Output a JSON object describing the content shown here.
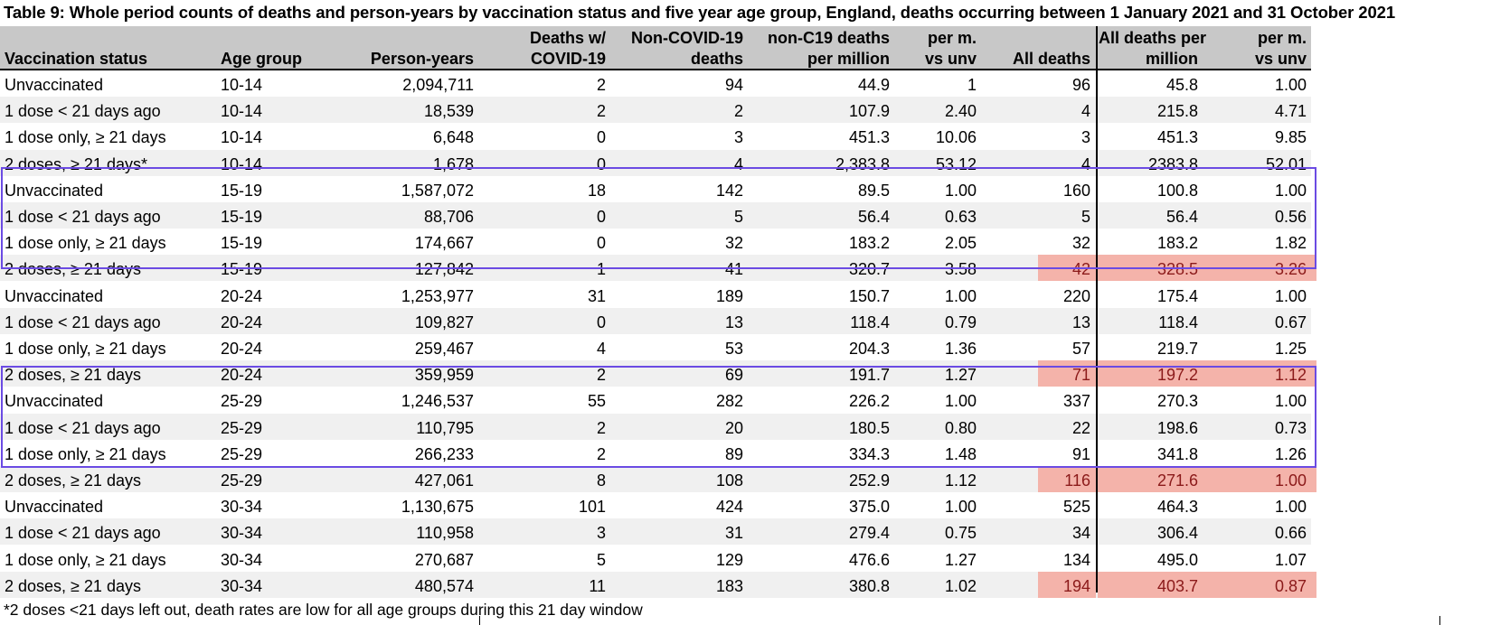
{
  "title": "Table 9: Whole period counts of deaths and person-years by vaccination status and five year age group, England, deaths occurring between 1 January 2021 and 31 October 2021",
  "headers": {
    "status": [
      "Vaccination status"
    ],
    "age": [
      "Age group"
    ],
    "py": [
      "Person-years"
    ],
    "dwc": [
      "Deaths w/",
      "COVID-19"
    ],
    "ncd": [
      "Non-COVID-19",
      "deaths"
    ],
    "ncpm": [
      "non-C19 deaths",
      "per million"
    ],
    "pmv1": [
      "per m.",
      "vs unv"
    ],
    "all": [
      "All deaths"
    ],
    "adpm": [
      "All deaths per",
      "million"
    ],
    "pmv2": [
      "per m.",
      "vs unv"
    ]
  },
  "rows": [
    {
      "status": "Unvaccinated",
      "age": "10-14",
      "py": "2,094,711",
      "dwc": "2",
      "ncd": "94",
      "ncpm": "44.9",
      "pmv1": "1",
      "all": "96",
      "adpm": "45.8",
      "pmv2": "1.00",
      "highlight": false
    },
    {
      "status": "1 dose < 21 days ago",
      "age": "10-14",
      "py": "18,539",
      "dwc": "2",
      "ncd": "2",
      "ncpm": "107.9",
      "pmv1": "2.40",
      "all": "4",
      "adpm": "215.8",
      "pmv2": "4.71",
      "highlight": false
    },
    {
      "status": "1 dose only, ≥ 21 days",
      "age": "10-14",
      "py": "6,648",
      "dwc": "0",
      "ncd": "3",
      "ncpm": "451.3",
      "pmv1": "10.06",
      "all": "3",
      "adpm": "451.3",
      "pmv2": "9.85",
      "highlight": false
    },
    {
      "status": "2 doses, ≥ 21 days*",
      "age": "10-14",
      "py": "1,678",
      "dwc": "0",
      "ncd": "4",
      "ncpm": "2,383.8",
      "pmv1": "53.12",
      "all": "4",
      "adpm": "2383.8",
      "pmv2": "52.01",
      "highlight": false
    },
    {
      "status": "Unvaccinated",
      "age": "15-19",
      "py": "1,587,072",
      "dwc": "18",
      "ncd": "142",
      "ncpm": "89.5",
      "pmv1": "1.00",
      "all": "160",
      "adpm": "100.8",
      "pmv2": "1.00",
      "highlight": false
    },
    {
      "status": "1 dose < 21 days ago",
      "age": "15-19",
      "py": "88,706",
      "dwc": "0",
      "ncd": "5",
      "ncpm": "56.4",
      "pmv1": "0.63",
      "all": "5",
      "adpm": "56.4",
      "pmv2": "0.56",
      "highlight": false
    },
    {
      "status": "1 dose only, ≥ 21 days",
      "age": "15-19",
      "py": "174,667",
      "dwc": "0",
      "ncd": "32",
      "ncpm": "183.2",
      "pmv1": "2.05",
      "all": "32",
      "adpm": "183.2",
      "pmv2": "1.82",
      "highlight": false
    },
    {
      "status": "2 doses, ≥ 21 days",
      "age": "15-19",
      "py": "127,842",
      "dwc": "1",
      "ncd": "41",
      "ncpm": "320.7",
      "pmv1": "3.58",
      "all": "42",
      "adpm": "328.5",
      "pmv2": "3.26",
      "highlight": true
    },
    {
      "status": "Unvaccinated",
      "age": "20-24",
      "py": "1,253,977",
      "dwc": "31",
      "ncd": "189",
      "ncpm": "150.7",
      "pmv1": "1.00",
      "all": "220",
      "adpm": "175.4",
      "pmv2": "1.00",
      "highlight": false
    },
    {
      "status": "1 dose < 21 days ago",
      "age": "20-24",
      "py": "109,827",
      "dwc": "0",
      "ncd": "13",
      "ncpm": "118.4",
      "pmv1": "0.79",
      "all": "13",
      "adpm": "118.4",
      "pmv2": "0.67",
      "highlight": false
    },
    {
      "status": "1 dose only, ≥ 21 days",
      "age": "20-24",
      "py": "259,467",
      "dwc": "4",
      "ncd": "53",
      "ncpm": "204.3",
      "pmv1": "1.36",
      "all": "57",
      "adpm": "219.7",
      "pmv2": "1.25",
      "highlight": false
    },
    {
      "status": "2 doses, ≥ 21 days",
      "age": "20-24",
      "py": "359,959",
      "dwc": "2",
      "ncd": "69",
      "ncpm": "191.7",
      "pmv1": "1.27",
      "all": "71",
      "adpm": "197.2",
      "pmv2": "1.12",
      "highlight": true
    },
    {
      "status": "Unvaccinated",
      "age": "25-29",
      "py": "1,246,537",
      "dwc": "55",
      "ncd": "282",
      "ncpm": "226.2",
      "pmv1": "1.00",
      "all": "337",
      "adpm": "270.3",
      "pmv2": "1.00",
      "highlight": false
    },
    {
      "status": "1 dose < 21 days ago",
      "age": "25-29",
      "py": "110,795",
      "dwc": "2",
      "ncd": "20",
      "ncpm": "180.5",
      "pmv1": "0.80",
      "all": "22",
      "adpm": "198.6",
      "pmv2": "0.73",
      "highlight": false
    },
    {
      "status": "1 dose only, ≥ 21 days",
      "age": "25-29",
      "py": "266,233",
      "dwc": "2",
      "ncd": "89",
      "ncpm": "334.3",
      "pmv1": "1.48",
      "all": "91",
      "adpm": "341.8",
      "pmv2": "1.26",
      "highlight": false
    },
    {
      "status": "2 doses, ≥ 21 days",
      "age": "25-29",
      "py": "427,061",
      "dwc": "8",
      "ncd": "108",
      "ncpm": "252.9",
      "pmv1": "1.12",
      "all": "116",
      "adpm": "271.6",
      "pmv2": "1.00",
      "highlight": true
    },
    {
      "status": "Unvaccinated",
      "age": "30-34",
      "py": "1,130,675",
      "dwc": "101",
      "ncd": "424",
      "ncpm": "375.0",
      "pmv1": "1.00",
      "all": "525",
      "adpm": "464.3",
      "pmv2": "1.00",
      "highlight": false
    },
    {
      "status": "1 dose < 21 days ago",
      "age": "30-34",
      "py": "110,958",
      "dwc": "3",
      "ncd": "31",
      "ncpm": "279.4",
      "pmv1": "0.75",
      "all": "34",
      "adpm": "306.4",
      "pmv2": "0.66",
      "highlight": false
    },
    {
      "status": "1 dose only, ≥ 21 days",
      "age": "30-34",
      "py": "270,687",
      "dwc": "5",
      "ncd": "129",
      "ncpm": "476.6",
      "pmv1": "1.27",
      "all": "134",
      "adpm": "495.0",
      "pmv2": "1.07",
      "highlight": false
    },
    {
      "status": "2 doses, ≥ 21 days",
      "age": "30-34",
      "py": "480,574",
      "dwc": "11",
      "ncd": "183",
      "ncpm": "380.8",
      "pmv1": "1.02",
      "all": "194",
      "adpm": "403.7",
      "pmv2": "0.87",
      "highlight": true
    }
  ],
  "footnote": "*2 doses <21 days left out, death rates are low for all age groups during this 21 day window",
  "colors": {
    "header_bg": "#c8c8c8",
    "alt_row_bg": "#f0f0f0",
    "highlight_bg": "#f4b3aa",
    "highlight_text": "#8b1a1a",
    "box_border": "#6b4be3"
  }
}
